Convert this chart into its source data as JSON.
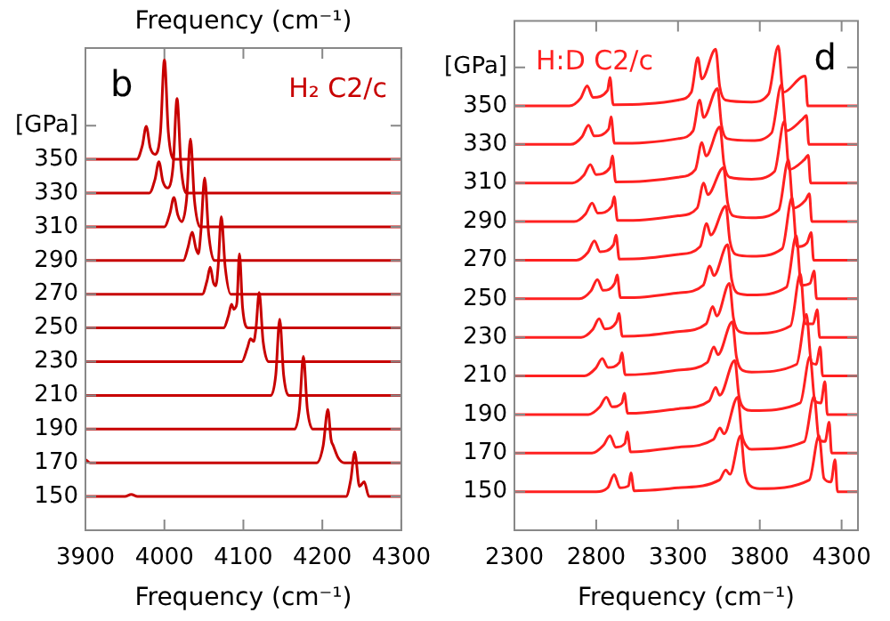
{
  "chart_data": [
    {
      "type": "line",
      "title": "H₂ C2/c",
      "xlabel": "Frequency (cm⁻¹)",
      "x2label": "Frequency (cm⁻¹)",
      "annotations": [
        "b"
      ],
      "marker": "none",
      "line_style": "solid",
      "xlim": [
        3900,
        4300
      ],
      "xticks": [
        3900,
        4000,
        4100,
        4200,
        4300
      ],
      "ylim": [
        130,
        416
      ],
      "yticks": [
        150,
        170,
        190,
        210,
        230,
        250,
        270,
        290,
        310,
        330,
        350,
        {
          "value": 370,
          "label": "[GPa]"
        }
      ],
      "series": [
        {
          "color": "#c80000",
          "x": [
            3900,
            3965,
            3972,
            3977,
            3982,
            3988,
            3995,
            4000,
            4005,
            4012,
            4300
          ],
          "values": [
            350,
            350,
            358,
            369.6,
            357,
            353,
            366,
            409,
            366,
            350,
            350
          ]
        },
        {
          "color": "#c80000",
          "x": [
            3900,
            3981,
            3988,
            3993,
            3998,
            4004,
            4011,
            4016,
            4021,
            4028,
            4300
          ],
          "values": [
            330,
            330,
            338,
            348.6,
            337,
            333,
            346,
            386,
            346,
            330,
            330
          ]
        },
        {
          "color": "#c80000",
          "x": [
            3900,
            4000,
            4007,
            4012,
            4017,
            4022,
            4028,
            4033,
            4038,
            4045,
            4300
          ],
          "values": [
            310,
            310,
            318,
            327.4,
            317,
            313,
            326,
            362,
            326,
            310,
            310
          ]
        },
        {
          "color": "#c80000",
          "x": [
            3900,
            4024,
            4030,
            4035,
            4040,
            4043,
            4046,
            4051,
            4056,
            4063,
            4300
          ],
          "values": [
            290,
            290,
            298,
            306.8,
            297,
            294,
            306,
            339,
            306,
            290,
            290
          ]
        },
        {
          "color": "#c80000",
          "x": [
            3900,
            4048,
            4054,
            4058,
            4062,
            4065,
            4068,
            4072,
            4077,
            4084,
            4300
          ],
          "values": [
            270,
            270,
            278,
            286,
            277,
            275,
            286,
            316,
            286,
            270,
            270
          ]
        },
        {
          "color": "#c80000",
          "x": [
            3900,
            4075,
            4081,
            4085,
            4088,
            4090,
            4092,
            4095,
            4099,
            4106,
            4300
          ],
          "values": [
            250,
            250,
            257,
            264,
            261,
            262,
            266,
            294,
            262,
            250,
            250
          ]
        },
        {
          "color": "#c80000",
          "x": [
            3900,
            4098,
            4105,
            4109,
            4113,
            4116,
            4120,
            4125,
            4132,
            4300
          ],
          "values": [
            230,
            230,
            238,
            243.6,
            242,
            250,
            271,
            242,
            230,
            230
          ]
        },
        {
          "color": "#c80000",
          "x": [
            3900,
            4135,
            4141,
            4146,
            4151,
            4158,
            4300
          ],
          "values": [
            210,
            210,
            222,
            255.2,
            222,
            210,
            210
          ]
        },
        {
          "color": "#c80000",
          "x": [
            3900,
            4165,
            4171,
            4176,
            4181,
            4188,
            4300
          ],
          "values": [
            190,
            190,
            202,
            233.2,
            202,
            190,
            190
          ]
        },
        {
          "color": "#c80000",
          "x": [
            3900,
            3906,
            4193,
            4201,
            4207,
            4211,
            4214,
            4220,
            4228,
            4300
          ],
          "values": [
            172,
            170,
            170,
            180,
            201.6,
            184,
            180,
            173,
            170,
            170
          ]
        },
        {
          "color": "#c80000",
          "x": [
            3900,
            3950,
            3958,
            3966,
            4230,
            4236,
            4241,
            4247,
            4253,
            4259,
            4300
          ],
          "values": [
            150,
            150,
            151.2,
            150,
            150,
            160,
            176.4,
            156,
            158.8,
            150,
            150
          ]
        }
      ]
    },
    {
      "type": "line",
      "title": "H:D C2/c",
      "xlabel": "Frequency (cm⁻¹)",
      "annotations": [
        "d"
      ],
      "marker": "none",
      "line_style": "solid",
      "xlim": [
        2300,
        4400
      ],
      "xticks": [
        2300,
        2800,
        3300,
        3800,
        4300
      ],
      "ylim": [
        130,
        394
      ],
      "yticks": [
        150,
        170,
        190,
        210,
        230,
        250,
        270,
        290,
        310,
        330,
        350,
        {
          "value": 370,
          "label": "[GPa]"
        }
      ],
      "series": [
        {
          "color": "#ff2020",
          "x": [
            2300,
            2635,
            2705,
            2745,
            2780,
            2869,
            2884,
            2904,
            3100,
            3300,
            3381,
            3421,
            3446,
            3530,
            3555,
            3590,
            3750,
            3853,
            3913,
            3943,
            4053,
            4078,
            4093,
            4400
          ],
          "values": [
            350,
            350,
            354,
            360.4,
            354.4,
            358,
            364.8,
            350.6,
            351,
            353,
            357,
            375,
            364,
            379.4,
            360,
            353,
            352,
            356,
            381,
            357,
            364.8,
            365.4,
            350,
            350
          ]
        },
        {
          "color": "#ff2020",
          "x": [
            2300,
            2643,
            2713,
            2753,
            2788,
            2876,
            2891,
            2911,
            3100,
            3300,
            3392,
            3432,
            3457,
            3541,
            3566,
            3601,
            3750,
            3872,
            3932,
            3962,
            4060,
            4085,
            4100,
            4400
          ],
          "values": [
            330,
            330,
            334,
            340,
            334.4,
            338,
            344.4,
            330.6,
            331,
            333,
            337,
            353,
            344,
            359,
            340,
            333,
            332,
            336,
            361,
            337,
            343,
            345,
            330,
            330
          ]
        },
        {
          "color": "#ff2020",
          "x": [
            2300,
            2654,
            2724,
            2764,
            2799,
            2884,
            2899,
            2919,
            3100,
            3300,
            3406,
            3446,
            3471,
            3556,
            3581,
            3616,
            3750,
            3890,
            3950,
            3980,
            4071,
            4096,
            4111,
            4400
          ],
          "values": [
            310,
            310,
            314,
            319.6,
            314.4,
            318,
            324,
            310.6,
            311,
            313,
            317,
            331,
            324,
            339,
            320,
            313,
            312,
            316,
            342,
            317,
            322,
            324.4,
            310,
            310
          ]
        },
        {
          "color": "#ff2020",
          "x": [
            2300,
            2665,
            2735,
            2775,
            2810,
            2895,
            2910,
            2930,
            3100,
            3300,
            3417,
            3457,
            3482,
            3578,
            3603,
            3638,
            3750,
            3915,
            3975,
            4005,
            4078,
            4103,
            4118,
            4400
          ],
          "values": [
            290,
            290,
            294,
            299.6,
            294.4,
            298,
            303,
            290.6,
            291,
            293,
            297,
            310,
            304,
            318,
            300,
            293,
            292,
            296,
            322,
            297,
            301,
            304.4,
            290,
            290
          ]
        },
        {
          "color": "#ff2020",
          "x": [
            2300,
            2679,
            2749,
            2789,
            2824,
            2906,
            2921,
            2941,
            3100,
            3300,
            3435,
            3475,
            3500,
            3592,
            3617,
            3652,
            3750,
            3937,
            3997,
            4027,
            4089,
            4114,
            4129,
            4400
          ],
          "values": [
            270,
            270,
            274,
            280,
            274.4,
            278,
            283,
            270.6,
            271,
            273,
            277,
            289,
            283,
            298,
            280,
            273,
            272,
            276,
            302.4,
            277,
            279,
            284.4,
            270,
            270
          ]
        },
        {
          "color": "#ff2020",
          "x": [
            2300,
            2697,
            2767,
            2807,
            2842,
            2913,
            2928,
            2948,
            3100,
            3300,
            3454,
            3494,
            3519,
            3603,
            3628,
            3663,
            3750,
            3963,
            4023,
            4053,
            4107,
            4132,
            4147,
            4400
          ],
          "values": [
            250,
            250,
            254,
            260,
            254.4,
            258,
            262.4,
            250.6,
            251,
            253,
            257,
            267,
            262,
            278,
            260,
            253,
            252,
            256,
            282.8,
            257,
            258,
            264.4,
            250,
            250
          ]
        },
        {
          "color": "#ff2020",
          "x": [
            2300,
            2708,
            2778,
            2818,
            2853,
            2924,
            2939,
            2959,
            3100,
            3300,
            3472,
            3512,
            3537,
            3614,
            3639,
            3674,
            3750,
            3988,
            4048,
            4078,
            4126,
            4151,
            4166,
            4400
          ],
          "values": [
            230,
            230,
            234,
            239.6,
            234.4,
            238,
            242.4,
            230.6,
            231,
            233,
            237,
            246,
            241,
            258,
            240,
            233,
            232,
            236,
            263,
            237,
            237,
            244.4,
            230,
            230
          ]
        },
        {
          "color": "#ff2020",
          "x": [
            2300,
            2727,
            2797,
            2837,
            2872,
            2942,
            2957,
            2977,
            3100,
            3300,
            3479,
            3519,
            3544,
            3632,
            3657,
            3692,
            3750,
            4025,
            4085,
            4115,
            4144,
            4169,
            4184,
            4400
          ],
          "values": [
            210,
            210,
            214,
            219,
            214.4,
            217,
            222,
            210.6,
            211,
            213,
            217,
            225,
            221,
            238,
            220,
            213,
            212,
            216,
            242,
            217,
            216,
            225,
            210,
            210
          ]
        },
        {
          "color": "#ff2020",
          "x": [
            2300,
            2752,
            2822,
            2862,
            2897,
            2957,
            2972,
            2992,
            3100,
            3300,
            3490,
            3530,
            3555,
            3647,
            3672,
            3707,
            3750,
            4047,
            4107,
            4137,
            4173,
            4198,
            4213,
            4400
          ],
          "values": [
            190,
            190,
            194,
            199,
            194,
            196,
            201,
            190.6,
            191,
            193,
            197,
            204,
            200,
            218,
            200,
            193,
            192,
            196,
            220,
            197,
            196,
            207,
            190,
            190
          ]
        },
        {
          "color": "#ff2020",
          "x": [
            2300,
            2774,
            2844,
            2884,
            2919,
            2975,
            2990,
            3010,
            3100,
            3300,
            3516,
            3556,
            3581,
            3665,
            3690,
            3725,
            3750,
            4072,
            4132,
            4162,
            4199,
            4224,
            4239,
            4400
          ],
          "values": [
            170,
            170,
            174,
            179,
            173,
            175,
            181,
            170.6,
            171,
            173,
            177,
            183,
            180,
            199,
            180,
            173,
            172,
            176,
            199.4,
            177,
            176,
            186,
            170,
            170
          ]
        },
        {
          "color": "#ff2020",
          "x": [
            2300,
            2800,
            2870,
            2910,
            2945,
            2997,
            3012,
            3032,
            3100,
            3300,
            3552,
            3592,
            3617,
            3683,
            3708,
            3743,
            3800,
            4102,
            4162,
            4192,
            4235,
            4260,
            4275,
            4400
          ],
          "values": [
            150,
            150,
            152,
            158.8,
            152,
            153,
            159.8,
            150.4,
            150.6,
            152,
            156,
            161.2,
            159,
            179,
            160,
            153,
            151.6,
            156,
            179,
            157,
            155,
            166.6,
            150,
            150
          ]
        }
      ]
    }
  ]
}
